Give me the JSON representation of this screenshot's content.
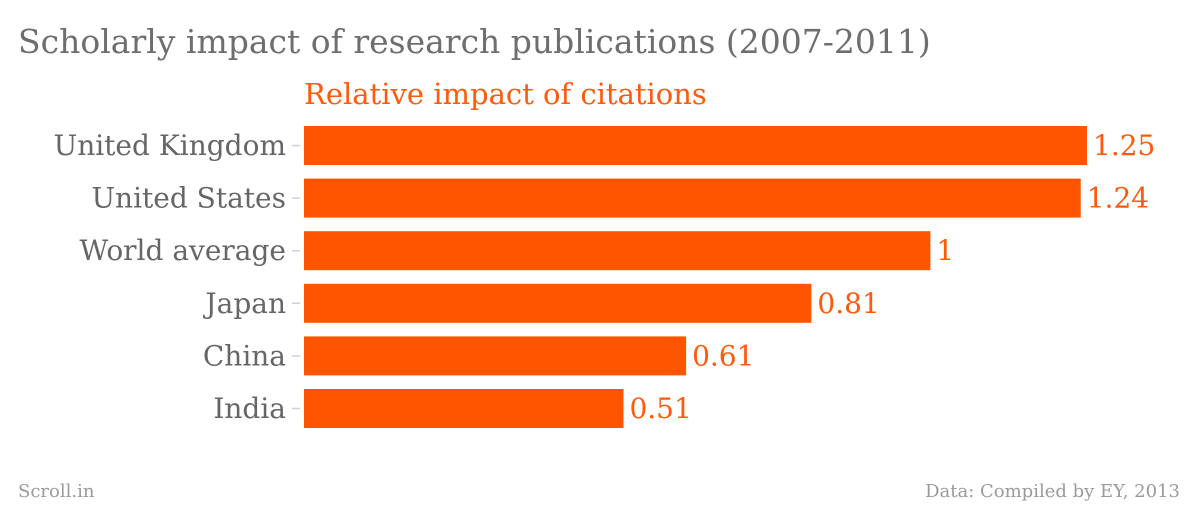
{
  "header": {
    "title": "Scholarly impact of research publications (2007-2011)"
  },
  "chart_data": {
    "type": "bar",
    "orientation": "horizontal",
    "title": "Scholarly impact of research publications (2007-2011)",
    "categories": [
      "United Kingdom",
      "United States",
      "World average",
      "Japan",
      "China",
      "India"
    ],
    "series": [
      {
        "name": "Relative impact of citations",
        "values": [
          1.25,
          1.24,
          1,
          0.81,
          0.61,
          0.51
        ]
      }
    ],
    "value_labels": [
      "1.25",
      "1.24",
      "1",
      "0.81",
      "0.61",
      "0.51"
    ],
    "xlim": [
      0,
      1.25
    ],
    "grid": false,
    "legend": "none",
    "bar_color": "#ff5500",
    "label_color": "#ff5a0a"
  },
  "footer": {
    "left": "Scroll.in",
    "right": "Data: Compiled by EY, 2013"
  }
}
